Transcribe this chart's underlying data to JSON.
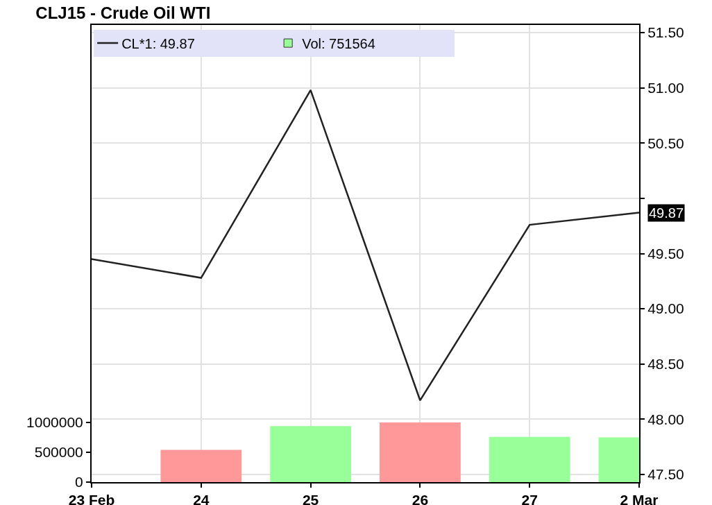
{
  "chart_data": {
    "type": "line",
    "title": "CLJ15 - Crude Oil WTI",
    "categories": [
      "23 Feb",
      "24",
      "25",
      "26",
      "27",
      "2 Mar"
    ],
    "series": [
      {
        "name": "CL*1: 49.87",
        "color": "#222222",
        "values": [
          49.45,
          49.28,
          50.98,
          48.17,
          49.76,
          49.87
        ]
      },
      {
        "name": "Vol: 751564",
        "type": "bar",
        "axis": "y2",
        "color": "#99ff99",
        "colors": [
          null,
          "#ff9999",
          "#99ff99",
          "#ff9999",
          "#99ff99",
          "#99ff99"
        ],
        "values": [
          null,
          540000,
          940000,
          1000000,
          760000,
          751564
        ]
      }
    ],
    "ylim": [
      47.43,
      51.57
    ],
    "yticks": [
      {
        "value": 47.5,
        "label": "47.50"
      },
      {
        "value": 48,
        "label": "48.00"
      },
      {
        "value": 48.5,
        "label": "48.50"
      },
      {
        "value": 49,
        "label": "49.00"
      },
      {
        "value": 49.5,
        "label": "49.50"
      },
      {
        "value": 50,
        "label": null
      },
      {
        "value": 50.5,
        "label": "50.50"
      },
      {
        "value": 51,
        "label": "51.00"
      },
      {
        "value": 51.5,
        "label": "51.50"
      }
    ],
    "y2lim": [
      0,
      7670000
    ],
    "y2ticks": [
      0,
      500000,
      1000000
    ],
    "grid": true,
    "legend": "top left",
    "annotations": [
      {
        "text": "49.87",
        "x": "2 Mar",
        "y": 49.87
      }
    ]
  }
}
